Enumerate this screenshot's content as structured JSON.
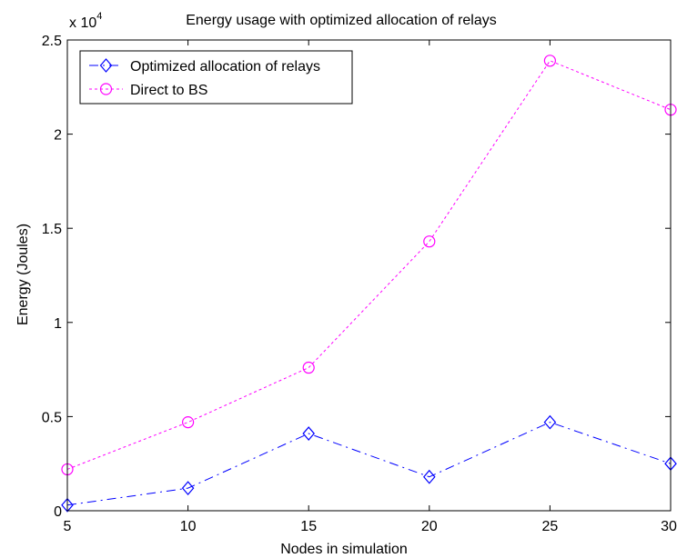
{
  "chart_data": {
    "type": "line",
    "title": "Energy usage with optimized allocation of relays",
    "xlabel": "Nodes in simulation",
    "ylabel": "Energy (Joules)",
    "y_multiplier_base": "x 10",
    "y_multiplier_exponent": "4",
    "x": [
      5,
      10,
      15,
      20,
      25,
      30
    ],
    "xlim": [
      5,
      30
    ],
    "ylim": [
      0,
      2.5
    ],
    "x_ticks": [
      "5",
      "10",
      "15",
      "20",
      "25",
      "30"
    ],
    "y_ticks": [
      "0",
      "0.5",
      "1",
      "1.5",
      "2",
      "2.5"
    ],
    "grid": false,
    "legend_position": "top-left",
    "series": [
      {
        "name": "Optimized allocation of relays",
        "values": [
          0.03,
          0.12,
          0.41,
          0.18,
          0.47,
          0.25
        ],
        "color": "#0000ff",
        "line_style": "dash-dot",
        "marker": "diamond"
      },
      {
        "name": "Direct to BS",
        "values": [
          0.22,
          0.47,
          0.76,
          1.43,
          2.39,
          2.13
        ],
        "color": "#ff00ff",
        "line_style": "dotted",
        "marker": "circle"
      }
    ]
  }
}
